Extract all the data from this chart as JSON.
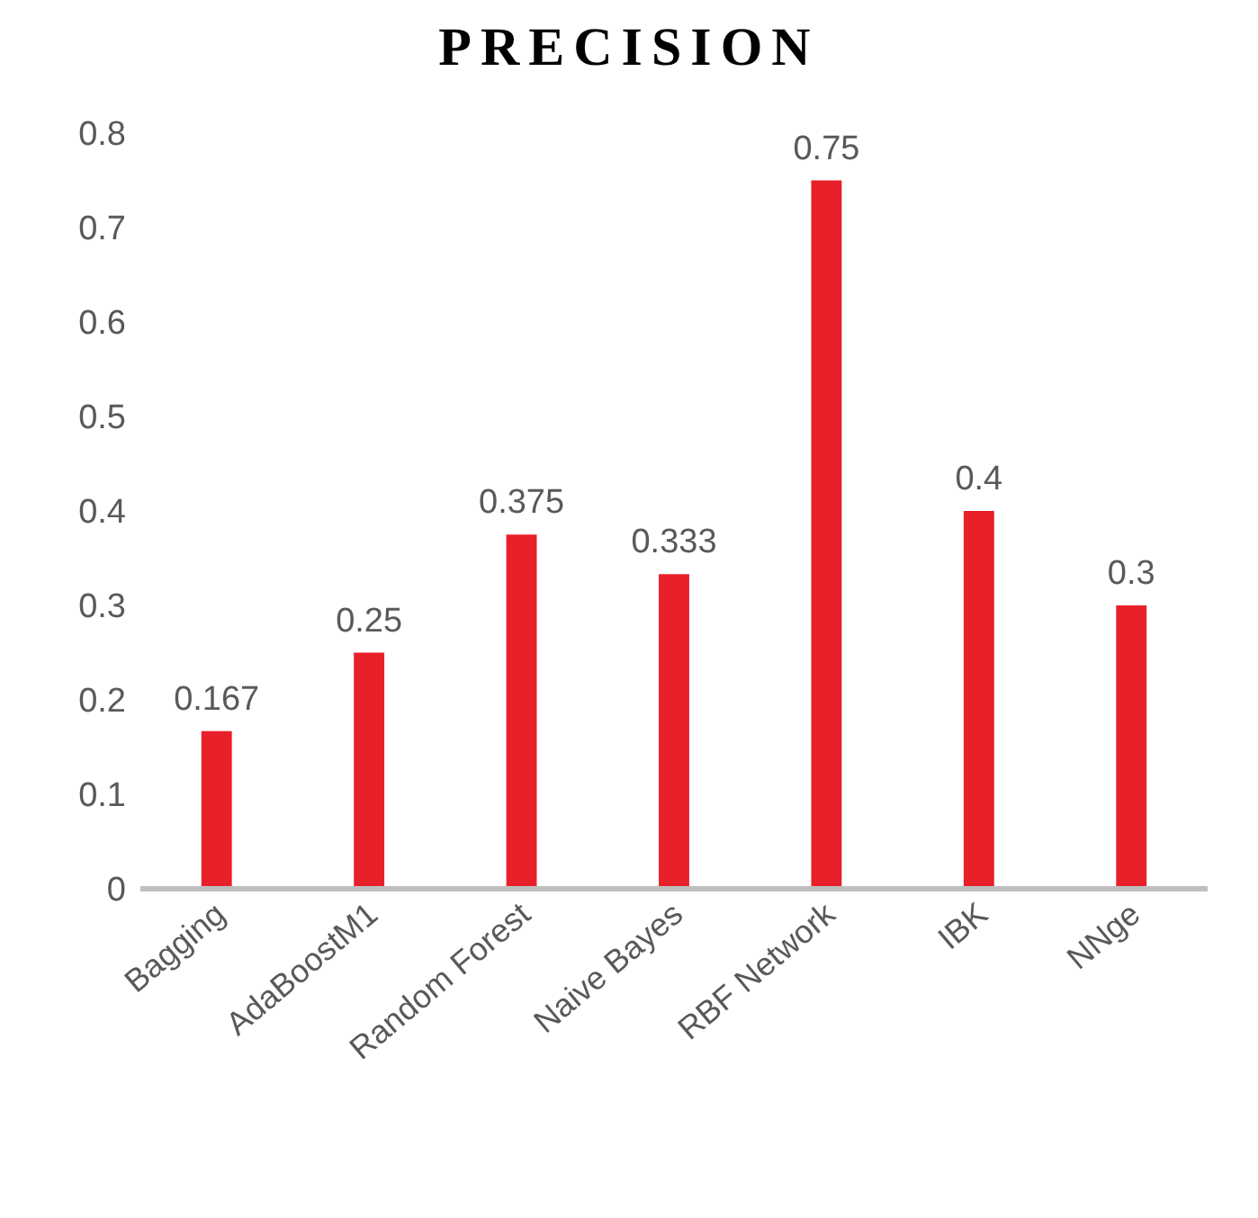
{
  "chart_data": {
    "type": "bar",
    "title": "PRECISION",
    "categories": [
      "Bagging",
      "AdaBoostM1",
      "Random Forest",
      "Naive Bayes",
      "RBF Network",
      "IBK",
      "NNge"
    ],
    "values": [
      0.167,
      0.25,
      0.375,
      0.333,
      0.75,
      0.4,
      0.3
    ],
    "color": "#e8202a",
    "ylim": [
      0,
      0.8
    ],
    "yticks": [
      0,
      0.1,
      0.2,
      0.3,
      0.4,
      0.5,
      0.6,
      0.7,
      0.8
    ],
    "grid": false,
    "data_labels": true
  }
}
